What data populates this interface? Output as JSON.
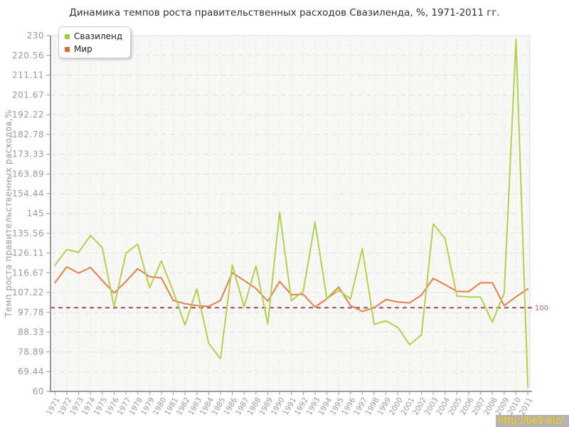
{
  "title": "Динамика темпов роста правительственных расходов Свазиленда, %, 1971-2011 гг.",
  "y_axis": {
    "label": "Темп роста правительственных расходов,%"
  },
  "legend": {
    "items": [
      {
        "label": "Свазиленд",
        "color": "#a9c930"
      },
      {
        "label": "Мир",
        "color": "#dd6a33"
      }
    ]
  },
  "reference_line": {
    "label": "100",
    "value": 100,
    "color": "#a04a58"
  },
  "watermark": {
    "text": "http://be5.biz/",
    "bg": "#b4b4b4",
    "fg": "#ffdf00"
  },
  "chart_data": {
    "type": "line",
    "title": "Динамика темпов роста правительственных расходов Свазиленда, %, 1971-2011 гг.",
    "xlabel": "",
    "ylabel": "Темп роста правительственных расходов,%",
    "x": [
      1971,
      1972,
      1973,
      1974,
      1975,
      1976,
      1977,
      1978,
      1979,
      1980,
      1981,
      1982,
      1983,
      1984,
      1985,
      1986,
      1987,
      1988,
      1989,
      1990,
      1991,
      1992,
      1993,
      1994,
      1995,
      1996,
      1997,
      1998,
      1999,
      2000,
      2001,
      2002,
      2003,
      2004,
      2005,
      2006,
      2007,
      2008,
      2009,
      2010,
      2011
    ],
    "series": [
      {
        "name": "Свазиленд",
        "color": "#b3d14a",
        "values": [
          120.3,
          127.8,
          126.5,
          134.5,
          128.6,
          100.5,
          126.0,
          130.4,
          109.5,
          122.3,
          107.8,
          91.7,
          109.0,
          83.0,
          75.6,
          120.4,
          100.4,
          120.0,
          92.2,
          145.6,
          103.3,
          107.8,
          140.9,
          104.2,
          108.2,
          104.2,
          128.2,
          92.1,
          93.7,
          90.6,
          82.3,
          87.0,
          140.0,
          133.0,
          105.6,
          105.1,
          105.1,
          93.1,
          107.0,
          228.3,
          62.0
        ]
      },
      {
        "name": "Мир",
        "color": "#e67f47",
        "values": [
          112.0,
          119.5,
          116.5,
          119.2,
          113.0,
          107.0,
          112.5,
          118.6,
          114.8,
          114.2,
          103.5,
          101.9,
          101.0,
          100.6,
          103.5,
          116.7,
          113.0,
          109.2,
          103.1,
          112.5,
          106.2,
          106.4,
          100.3,
          104.3,
          109.8,
          101.0,
          98.2,
          100.0,
          103.9,
          102.7,
          102.3,
          106.0,
          114.0,
          111.0,
          107.8,
          107.7,
          111.9,
          111.9,
          101.0,
          105.2,
          109.0
        ]
      }
    ],
    "ylim": [
      60,
      230
    ],
    "y_ticks": [
      60,
      69.44,
      78.89,
      88.33,
      97.78,
      107.22,
      116.67,
      126.11,
      135.56,
      145,
      154.44,
      163.89,
      173.33,
      182.78,
      192.22,
      201.67,
      211.11,
      220.56,
      230
    ],
    "grid": true,
    "legend_position": "top-left",
    "reference_line_y": 100
  }
}
